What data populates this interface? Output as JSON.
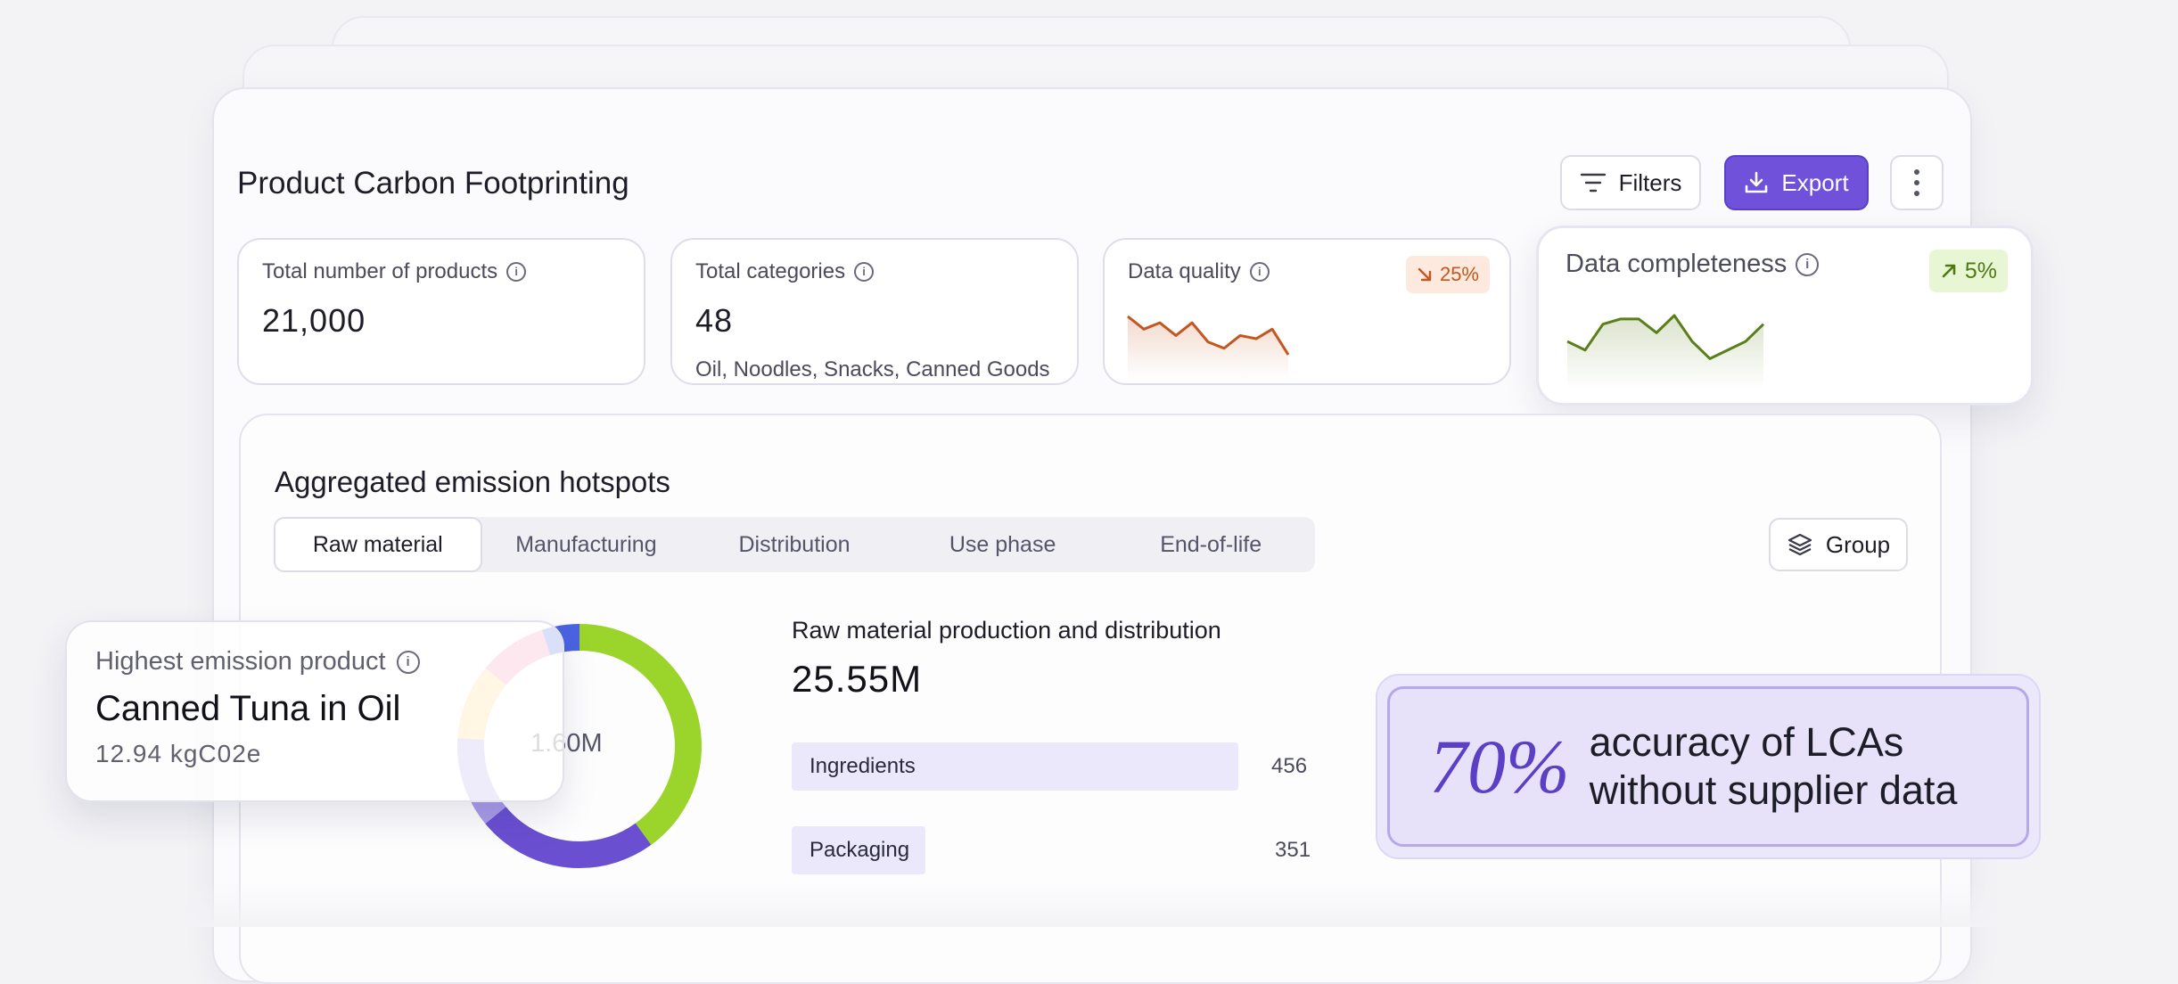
{
  "header": {
    "title": "Product Carbon Footprinting",
    "filters_label": "Filters",
    "export_label": "Export"
  },
  "stats": {
    "products": {
      "label": "Total number of products",
      "value": "21,000"
    },
    "categories": {
      "label": "Total categories",
      "value": "48",
      "sub": "Oil, Noodles, Snacks, Canned Goods"
    },
    "quality": {
      "label": "Data quality",
      "change": "25%",
      "trend": "down",
      "color": "#c5561e",
      "series": [
        5,
        3,
        4,
        2,
        4,
        1,
        0,
        2,
        1.5,
        3,
        -1
      ]
    },
    "completeness": {
      "label": "Data completeness",
      "change": "5%",
      "trend": "up",
      "color": "#5a7f1a",
      "series": [
        2,
        1.5,
        3,
        3.3,
        3.3,
        2.5,
        3.5,
        2,
        1,
        1.5,
        2,
        3
      ]
    }
  },
  "hotspots": {
    "title": "Aggregated emission hotspots",
    "tabs": [
      "Raw material",
      "Manufacturing",
      "Distribution",
      "Use phase",
      "End-of-life"
    ],
    "active_tab": 0,
    "group_label": "Group",
    "donut_center": "1.60M",
    "donut_segments": [
      {
        "color": "#9bd42b",
        "fraction": 0.4
      },
      {
        "color": "#6a4fd1",
        "fraction": 0.24
      },
      {
        "color": "#a89be8",
        "fraction": 0.12
      },
      {
        "color": "#ffd27a",
        "fraction": 0.1
      },
      {
        "color": "#f28ab0",
        "fraction": 0.09
      },
      {
        "color": "#4a63e0",
        "fraction": 0.05
      }
    ],
    "production": {
      "title": "Raw material production and distribution",
      "value": "25.55M",
      "bars": [
        {
          "label": "Ingredients",
          "value": "456"
        },
        {
          "label": "Packaging",
          "value": "351"
        }
      ]
    }
  },
  "highest": {
    "label": "Highest emission product",
    "title": "Canned Tuna in Oil",
    "sub": "12.94 kgC02e"
  },
  "accuracy": {
    "percent": "70%",
    "line1": "accuracy of LCAs",
    "line2": "without supplier data"
  }
}
